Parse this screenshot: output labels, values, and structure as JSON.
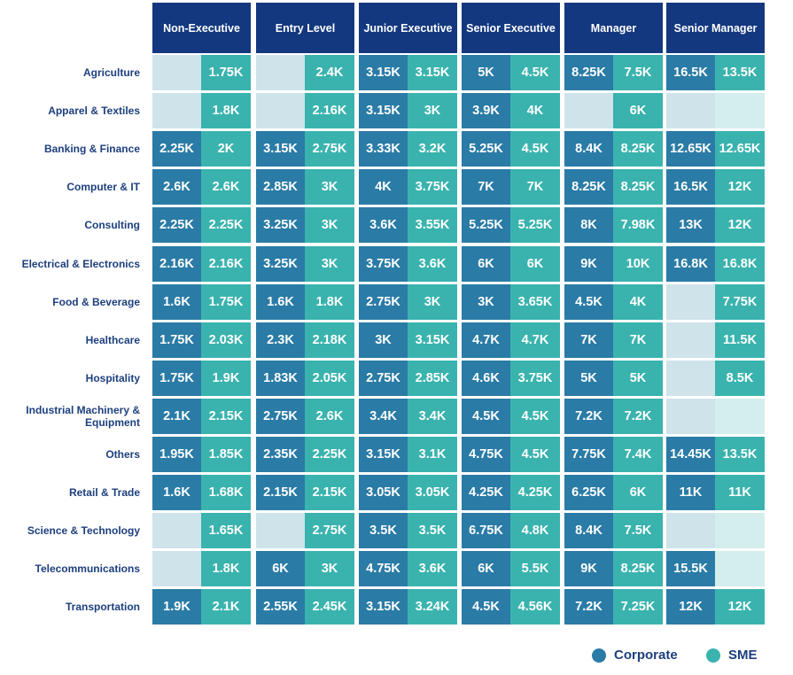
{
  "chart_data": {
    "type": "heatmap",
    "unit": "K",
    "columns": [
      "Non-Executive",
      "Entry Level",
      "Junior Executive",
      "Senior Executive",
      "Manager",
      "Senior Manager"
    ],
    "series_names": [
      "Corporate",
      "SME"
    ],
    "legend_position": "bottom-right",
    "colors": {
      "header": "#13387f",
      "Corporate": "#2a7ba6",
      "SME": "#3ab3ae",
      "Corporate_empty": "#cfe3ea",
      "SME_empty": "#d3eeec",
      "label": "#1d3f7e"
    },
    "rows": [
      {
        "label": "Agriculture",
        "Corporate": [
          null,
          null,
          3.15,
          5,
          8.25,
          16.5
        ],
        "SME": [
          1.75,
          2.4,
          3.15,
          4.5,
          7.5,
          13.5
        ]
      },
      {
        "label": "Apparel & Textiles",
        "Corporate": [
          null,
          null,
          3.15,
          3.9,
          null,
          null
        ],
        "SME": [
          1.8,
          2.16,
          3,
          4,
          6,
          null
        ]
      },
      {
        "label": "Banking & Finance",
        "Corporate": [
          2.25,
          3.15,
          3.33,
          5.25,
          8.4,
          12.65
        ],
        "SME": [
          2,
          2.75,
          3.2,
          4.5,
          8.25,
          12.65
        ]
      },
      {
        "label": "Computer & IT",
        "Corporate": [
          2.6,
          2.85,
          4,
          7,
          8.25,
          16.5
        ],
        "SME": [
          2.6,
          3,
          3.75,
          7,
          8.25,
          12
        ]
      },
      {
        "label": "Consulting",
        "Corporate": [
          2.25,
          3.25,
          3.6,
          5.25,
          8,
          13
        ],
        "SME": [
          2.25,
          3,
          3.55,
          5.25,
          7.98,
          12
        ]
      },
      {
        "label": "Electrical & Electronics",
        "Corporate": [
          2.16,
          3.25,
          3.75,
          6,
          9,
          16.8
        ],
        "SME": [
          2.16,
          3,
          3.6,
          6,
          10,
          16.8
        ]
      },
      {
        "label": "Food & Beverage",
        "Corporate": [
          1.6,
          1.6,
          2.75,
          3,
          4.5,
          null
        ],
        "SME": [
          1.75,
          1.8,
          3,
          3.65,
          4,
          7.75
        ]
      },
      {
        "label": "Healthcare",
        "Corporate": [
          1.75,
          2.3,
          3,
          4.7,
          7,
          null
        ],
        "SME": [
          2.03,
          2.18,
          3.15,
          4.7,
          7,
          11.5
        ]
      },
      {
        "label": "Hospitality",
        "Corporate": [
          1.75,
          1.83,
          2.75,
          4.6,
          5,
          null
        ],
        "SME": [
          1.9,
          2.05,
          2.85,
          3.75,
          5,
          8.5
        ]
      },
      {
        "label": "Industrial Machinery & Equipment",
        "Corporate": [
          2.1,
          2.75,
          3.4,
          4.5,
          7.2,
          null
        ],
        "SME": [
          2.15,
          2.6,
          3.4,
          4.5,
          7.2,
          null
        ]
      },
      {
        "label": "Others",
        "Corporate": [
          1.95,
          2.35,
          3.15,
          4.75,
          7.75,
          14.45
        ],
        "SME": [
          1.85,
          2.25,
          3.1,
          4.5,
          7.4,
          13.5
        ]
      },
      {
        "label": "Retail & Trade",
        "Corporate": [
          1.6,
          2.15,
          3.05,
          4.25,
          6.25,
          11
        ],
        "SME": [
          1.68,
          2.15,
          3.05,
          4.25,
          6,
          11
        ]
      },
      {
        "label": "Science & Technology",
        "Corporate": [
          null,
          null,
          3.5,
          6.75,
          8.4,
          null
        ],
        "SME": [
          1.65,
          2.75,
          3.5,
          4.8,
          7.5,
          null
        ]
      },
      {
        "label": "Telecommunications",
        "Corporate": [
          null,
          6,
          4.75,
          6,
          9,
          15.5
        ],
        "SME": [
          1.8,
          3,
          3.6,
          5.5,
          8.25,
          null
        ]
      },
      {
        "label": "Transportation",
        "Corporate": [
          1.9,
          2.55,
          3.15,
          4.5,
          7.2,
          12
        ],
        "SME": [
          2.1,
          2.45,
          3.24,
          4.56,
          7.25,
          12
        ]
      }
    ]
  }
}
